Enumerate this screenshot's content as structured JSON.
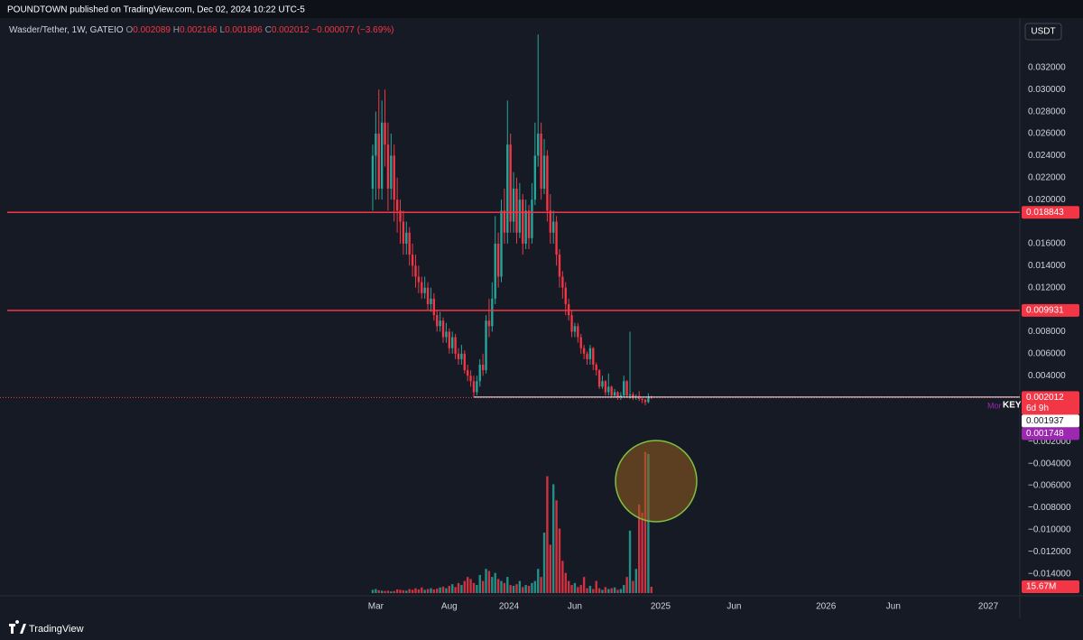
{
  "header": "POUNDTOWN published on TradingView.com, Dec 02, 2024 10:22 UTC-5",
  "footer": "TradingView",
  "currency_button": "USDT",
  "chart_data": {
    "type": "candlestick",
    "title": "Wasder/Tether, 1W, GATEIO",
    "legend_keys": [
      "O",
      "H",
      "L",
      "C"
    ],
    "change": {
      "value": -7.7e-05,
      "label": "−0.000077"
    },
    "change_pct": {
      "value": -3.69,
      "label": "(−3.69%)"
    },
    "up_color": "#26a69a",
    "down_color": "#f23645",
    "open": [
      0.021,
      0.024,
      0.026,
      0.021,
      0.027,
      0.025,
      0.021,
      0.024,
      0.02,
      0.019,
      0.018,
      0.016,
      0.017,
      0.015,
      0.014,
      0.013,
      0.0125,
      0.0115,
      0.012,
      0.0105,
      0.011,
      0.0095,
      0.0085,
      0.009,
      0.0075,
      0.008,
      0.0065,
      0.0075,
      0.006,
      0.0055,
      0.006,
      0.0045,
      0.004,
      0.0035,
      0.0025,
      0.0035,
      0.005,
      0.0045,
      0.009,
      0.0085,
      0.011,
      0.016,
      0.013,
      0.019,
      0.017,
      0.025,
      0.018,
      0.021,
      0.017,
      0.02,
      0.016,
      0.019,
      0.0165,
      0.02,
      0.024,
      0.026,
      0.021,
      0.024,
      0.019,
      0.017,
      0.018,
      0.015,
      0.013,
      0.012,
      0.0105,
      0.0095,
      0.008,
      0.0085,
      0.0075,
      0.0065,
      0.006,
      0.0055,
      0.0065,
      0.005,
      0.0045,
      0.003,
      0.0035,
      0.0025,
      0.003,
      0.0022,
      0.0025,
      0.002,
      0.0022,
      0.0035,
      0.0022,
      0.0023,
      0.002,
      0.0021,
      0.0019,
      0.0018,
      0.0016,
      0.002089
    ],
    "high": [
      0.025,
      0.028,
      0.03,
      0.029,
      0.03,
      0.027,
      0.026,
      0.025,
      0.022,
      0.02,
      0.019,
      0.018,
      0.0175,
      0.016,
      0.015,
      0.014,
      0.013,
      0.013,
      0.0125,
      0.012,
      0.0115,
      0.01,
      0.0098,
      0.0093,
      0.0088,
      0.0083,
      0.008,
      0.0078,
      0.0065,
      0.0068,
      0.0063,
      0.005,
      0.0045,
      0.004,
      0.004,
      0.0055,
      0.006,
      0.0095,
      0.011,
      0.0125,
      0.0185,
      0.017,
      0.02,
      0.021,
      0.029,
      0.026,
      0.0225,
      0.022,
      0.0215,
      0.0205,
      0.02,
      0.0195,
      0.0215,
      0.027,
      0.035,
      0.027,
      0.0255,
      0.0245,
      0.0205,
      0.019,
      0.0185,
      0.0155,
      0.0135,
      0.0125,
      0.011,
      0.01,
      0.0088,
      0.0088,
      0.0078,
      0.0068,
      0.0062,
      0.0068,
      0.0066,
      0.0052,
      0.0046,
      0.004,
      0.0036,
      0.0042,
      0.0031,
      0.0028,
      0.0026,
      0.0025,
      0.004,
      0.0036,
      0.008,
      0.0025,
      0.0023,
      0.0026,
      0.002,
      0.0019,
      0.0024,
      0.002166
    ],
    "low": [
      0.019,
      0.02,
      0.02,
      0.02,
      0.023,
      0.019,
      0.02,
      0.018,
      0.017,
      0.016,
      0.015,
      0.015,
      0.014,
      0.013,
      0.012,
      0.0115,
      0.011,
      0.011,
      0.01,
      0.0098,
      0.009,
      0.008,
      0.008,
      0.007,
      0.007,
      0.006,
      0.006,
      0.0055,
      0.005,
      0.005,
      0.0042,
      0.0035,
      0.003,
      0.002,
      0.0022,
      0.003,
      0.004,
      0.0042,
      0.0075,
      0.008,
      0.0105,
      0.012,
      0.0125,
      0.016,
      0.016,
      0.017,
      0.017,
      0.016,
      0.0165,
      0.015,
      0.0155,
      0.0155,
      0.016,
      0.0195,
      0.023,
      0.02,
      0.0205,
      0.018,
      0.016,
      0.016,
      0.014,
      0.012,
      0.011,
      0.0095,
      0.009,
      0.0075,
      0.0075,
      0.007,
      0.006,
      0.0055,
      0.005,
      0.005,
      0.0045,
      0.004,
      0.0028,
      0.0028,
      0.0022,
      0.0022,
      0.002,
      0.002,
      0.0018,
      0.0018,
      0.002,
      0.002,
      0.0019,
      0.0018,
      0.0018,
      0.0017,
      0.0015,
      0.0013,
      0.0015,
      0.001896
    ],
    "close": [
      0.024,
      0.026,
      0.021,
      0.027,
      0.025,
      0.021,
      0.024,
      0.02,
      0.019,
      0.018,
      0.016,
      0.017,
      0.015,
      0.014,
      0.013,
      0.0125,
      0.0115,
      0.012,
      0.0105,
      0.011,
      0.0095,
      0.0085,
      0.009,
      0.0075,
      0.008,
      0.0065,
      0.0075,
      0.006,
      0.0055,
      0.006,
      0.0045,
      0.004,
      0.0035,
      0.0025,
      0.0035,
      0.005,
      0.0045,
      0.009,
      0.0085,
      0.011,
      0.016,
      0.013,
      0.019,
      0.017,
      0.025,
      0.018,
      0.021,
      0.017,
      0.02,
      0.016,
      0.019,
      0.0165,
      0.02,
      0.024,
      0.026,
      0.021,
      0.024,
      0.019,
      0.017,
      0.018,
      0.015,
      0.013,
      0.012,
      0.0105,
      0.0095,
      0.008,
      0.0085,
      0.0075,
      0.0065,
      0.006,
      0.0055,
      0.0065,
      0.005,
      0.0045,
      0.003,
      0.0035,
      0.0025,
      0.003,
      0.0022,
      0.0025,
      0.002,
      0.0022,
      0.0035,
      0.0022,
      0.0023,
      0.002,
      0.0021,
      0.0019,
      0.0018,
      0.0016,
      0.0021,
      0.002012
    ],
    "volume": {
      "axis": "y2",
      "values": [
        8,
        10,
        7,
        6,
        5,
        6,
        4,
        5,
        9,
        8,
        7,
        6,
        10,
        8,
        12,
        9,
        14,
        8,
        10,
        12,
        9,
        11,
        14,
        16,
        12,
        18,
        22,
        15,
        25,
        20,
        30,
        40,
        35,
        25,
        20,
        45,
        30,
        60,
        55,
        40,
        50,
        35,
        30,
        25,
        40,
        20,
        18,
        22,
        30,
        15,
        20,
        18,
        25,
        30,
        60,
        40,
        150,
        290,
        120,
        270,
        230,
        160,
        80,
        50,
        30,
        20,
        25,
        15,
        20,
        40,
        12,
        18,
        10,
        30,
        12,
        8,
        15,
        10,
        12,
        14,
        8,
        10,
        20,
        40,
        155,
        30,
        60,
        220,
        200,
        350,
        345,
        15.67
      ],
      "value_labels": [
        null,
        null,
        null,
        null,
        null,
        null,
        null,
        null,
        null,
        null,
        null,
        null,
        null,
        null,
        null,
        null,
        null,
        null,
        null,
        null,
        null,
        null,
        null,
        null,
        null,
        null,
        null,
        null,
        null,
        null,
        null,
        null,
        null,
        null,
        null,
        null,
        null,
        null,
        null,
        null,
        null,
        null,
        null,
        null,
        null,
        null,
        null,
        null,
        null,
        null,
        null,
        null,
        null,
        null,
        null,
        null,
        null,
        null,
        null,
        null,
        null,
        null,
        null,
        null,
        null,
        null,
        null,
        null,
        null,
        null,
        null,
        null,
        null,
        null,
        null,
        null,
        null,
        null,
        null,
        null,
        null,
        null,
        null,
        null,
        null,
        null,
        null,
        null,
        null,
        null,
        null,
        "15.67M"
      ]
    },
    "ylim": [
      -0.016,
      0.0365
    ],
    "yticks": [
      {
        "value": 0.032,
        "label": "0.032000"
      },
      {
        "value": 0.03,
        "label": "0.030000"
      },
      {
        "value": 0.028,
        "label": "0.028000"
      },
      {
        "value": 0.026,
        "label": "0.026000"
      },
      {
        "value": 0.024,
        "label": "0.024000"
      },
      {
        "value": 0.022,
        "label": "0.022000"
      },
      {
        "value": 0.02,
        "label": "0.020000"
      },
      {
        "value": 0.016,
        "label": "0.016000"
      },
      {
        "value": 0.014,
        "label": "0.014000"
      },
      {
        "value": 0.012,
        "label": "0.012000"
      },
      {
        "value": 0.008,
        "label": "0.008000"
      },
      {
        "value": 0.006,
        "label": "0.006000"
      },
      {
        "value": 0.004,
        "label": "0.004000"
      },
      {
        "value": -0.002,
        "label": "−0.002000"
      },
      {
        "value": -0.004,
        "label": "−0.004000"
      },
      {
        "value": -0.006,
        "label": "−0.006000"
      },
      {
        "value": -0.008,
        "label": "−0.008000"
      },
      {
        "value": -0.01,
        "label": "−0.010000"
      },
      {
        "value": -0.012,
        "label": "−0.012000"
      },
      {
        "value": -0.014,
        "label": "−0.014000"
      }
    ],
    "y2lim": [
      0,
      1400
    ],
    "xlim": [
      -121.7,
      211.3
    ],
    "xticks": [
      {
        "value": 1,
        "label": "Mar"
      },
      {
        "value": 25,
        "label": "Aug"
      },
      {
        "value": 44.5,
        "label": "2024"
      },
      {
        "value": 66,
        "label": "Jun"
      },
      {
        "value": 94,
        "label": "2025"
      },
      {
        "value": 118,
        "label": "Jun"
      },
      {
        "value": 148,
        "label": "2026"
      },
      {
        "value": 170,
        "label": "Jun"
      },
      {
        "value": 201,
        "label": "2027"
      }
    ],
    "grid": false,
    "price_lines": [
      {
        "value": 0.018843,
        "label": "0.018843",
        "color": "#f23645"
      },
      {
        "value": 0.009931,
        "label": "0.009931",
        "color": "#f23645"
      }
    ],
    "last_price": {
      "value": 0.002012,
      "label": "0.002012",
      "countdown": "6d 9h",
      "color": "#f23645"
    },
    "markers": [
      {
        "value": 0.001937,
        "label": "0.001937",
        "color": "#ffffff"
      },
      {
        "value": 0.001748,
        "label": "0.001748",
        "color": "#9c27b0"
      }
    ],
    "key_line": {
      "value": 0.00205,
      "start": 33,
      "label": "KEY",
      "note": "Mor",
      "color": "#ffffff"
    }
  }
}
